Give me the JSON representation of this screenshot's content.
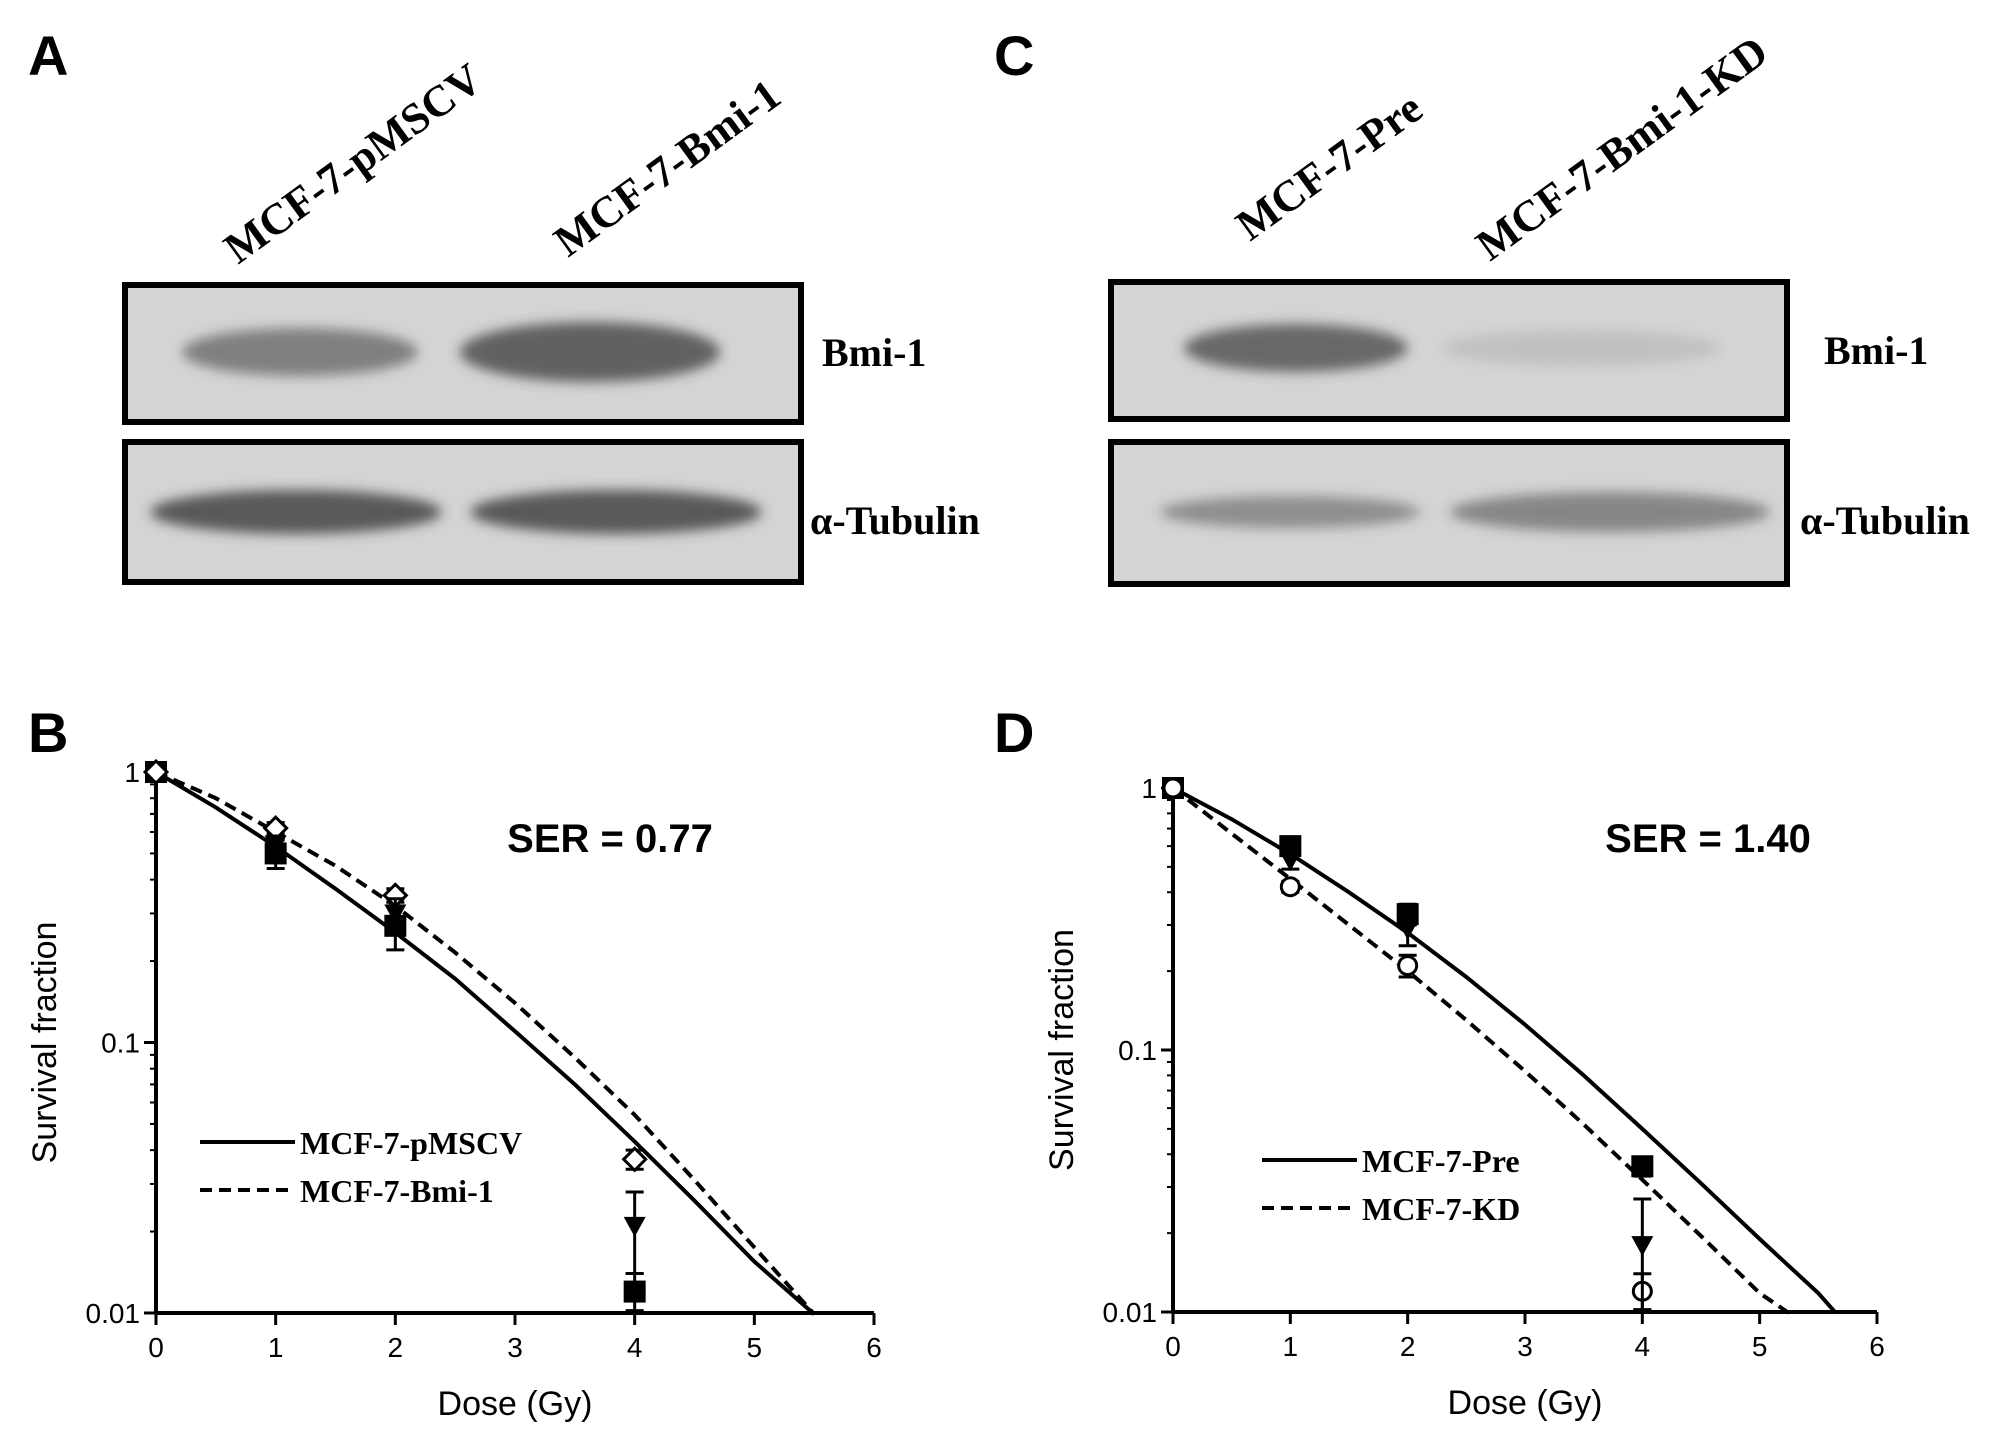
{
  "blots": [
    {
      "panel": "A",
      "lanes": [
        "MCF-7-pMSCV",
        "MCF-7-Bmi-1"
      ],
      "bands": [
        {
          "label": "Bmi-1",
          "intensity": [
            0.55,
            0.75
          ]
        },
        {
          "label": "α-Tubulin",
          "intensity": [
            0.8,
            0.8
          ]
        }
      ]
    },
    {
      "panel": "C",
      "lanes": [
        "MCF-7-Pre",
        "MCF-7-Bmi-1-KD"
      ],
      "bands": [
        {
          "label": "Bmi-1",
          "intensity": [
            0.7,
            0.12
          ]
        },
        {
          "label": "α-Tubulin",
          "intensity": [
            0.45,
            0.5
          ]
        }
      ]
    }
  ],
  "colors": {
    "blot_background": "#d4d4d4",
    "band": "#3a3a3a",
    "line": "#000000"
  },
  "chart_data": [
    {
      "panel": "B",
      "type": "line",
      "annotation": "SER = 0.77",
      "xlabel": "Dose (Gy)",
      "ylabel": "Survival fraction",
      "xlim": [
        0,
        6
      ],
      "ylim": [
        0.01,
        1
      ],
      "yscale": "log",
      "xticks": [
        "0",
        "1",
        "2",
        "3",
        "4",
        "5",
        "6"
      ],
      "yticks": [
        "1",
        "0.1",
        "0.01"
      ],
      "legend_position": "lower-left",
      "series": [
        {
          "name": "MCF-7-pMSCV",
          "style": "solid",
          "marker": "filled-square",
          "points": [
            [
              0,
              1.0
            ],
            [
              1,
              0.5
            ],
            [
              2,
              0.27
            ],
            [
              4,
              0.012
            ]
          ],
          "errors": [
            0,
            0.06,
            0.05,
            0.002
          ],
          "fit": [
            [
              0,
              1.0
            ],
            [
              0.5,
              0.74
            ],
            [
              1,
              0.53
            ],
            [
              1.5,
              0.37
            ],
            [
              2,
              0.255
            ],
            [
              2.5,
              0.172
            ],
            [
              3,
              0.11
            ],
            [
              3.5,
              0.07
            ],
            [
              4,
              0.043
            ],
            [
              4.5,
              0.026
            ],
            [
              5,
              0.0155
            ],
            [
              5.5,
              0.0099
            ]
          ]
        },
        {
          "name": "MCF-7-Bmi-1",
          "style": "dashed",
          "marker": "open-diamond",
          "points": [
            [
              0,
              1.0
            ],
            [
              1,
              0.62
            ],
            [
              2,
              0.35
            ],
            [
              4,
              0.037
            ]
          ],
          "errors": [
            0,
            0.03,
            0.02,
            0.003
          ],
          "fit": [
            [
              0,
              1.0
            ],
            [
              0.5,
              0.8
            ],
            [
              1,
              0.6
            ],
            [
              1.5,
              0.45
            ],
            [
              2,
              0.32
            ],
            [
              2.5,
              0.215
            ],
            [
              3,
              0.14
            ],
            [
              3.5,
              0.088
            ],
            [
              4,
              0.054
            ],
            [
              4.5,
              0.031
            ],
            [
              5,
              0.0175
            ],
            [
              5.5,
              0.0099
            ]
          ]
        },
        {
          "name": "",
          "style": "none",
          "marker": "filled-triangle",
          "points": [
            [
              1,
              0.54
            ],
            [
              2,
              0.3
            ],
            [
              4,
              0.021
            ]
          ],
          "errors": [
            0.04,
            0.04,
            0.007
          ]
        }
      ]
    },
    {
      "panel": "D",
      "type": "line",
      "annotation": "SER = 1.40",
      "xlabel": "Dose (Gy)",
      "ylabel": "Survival fraction",
      "xlim": [
        0,
        6
      ],
      "ylim": [
        0.01,
        1
      ],
      "yscale": "log",
      "xticks": [
        "0",
        "1",
        "2",
        "3",
        "4",
        "5",
        "6"
      ],
      "yticks": [
        "1",
        "0.1",
        "0.01"
      ],
      "legend_position": "lower-left",
      "series": [
        {
          "name": "MCF-7-Pre",
          "style": "solid",
          "marker": "filled-square",
          "points": [
            [
              0,
              1.0
            ],
            [
              1,
              0.6
            ],
            [
              2,
              0.33
            ],
            [
              4,
              0.036
            ]
          ],
          "errors": [
            0,
            0.04,
            0.03,
            0.003
          ],
          "fit": [
            [
              0,
              1.0
            ],
            [
              0.5,
              0.76
            ],
            [
              1,
              0.56
            ],
            [
              1.5,
              0.4
            ],
            [
              2,
              0.28
            ],
            [
              2.5,
              0.19
            ],
            [
              3,
              0.125
            ],
            [
              3.5,
              0.08
            ],
            [
              4,
              0.05
            ],
            [
              4.5,
              0.031
            ],
            [
              5,
              0.019
            ],
            [
              5.5,
              0.0118
            ],
            [
              5.65,
              0.0099
            ]
          ]
        },
        {
          "name": "MCF-7-KD",
          "style": "dashed",
          "marker": "open-circle",
          "points": [
            [
              0,
              1.0
            ],
            [
              1,
              0.42
            ],
            [
              2,
              0.21
            ],
            [
              4,
              0.012
            ]
          ],
          "errors": [
            0,
            0.02,
            0.02,
            0.002
          ],
          "fit": [
            [
              0,
              1.0
            ],
            [
              0.5,
              0.67
            ],
            [
              1,
              0.45
            ],
            [
              1.5,
              0.3
            ],
            [
              2,
              0.2
            ],
            [
              2.5,
              0.13
            ],
            [
              3,
              0.083
            ],
            [
              3.5,
              0.052
            ],
            [
              4,
              0.032
            ],
            [
              4.5,
              0.0195
            ],
            [
              5,
              0.0118
            ],
            [
              5.25,
              0.0099
            ]
          ]
        },
        {
          "name": "",
          "style": "none",
          "marker": "filled-triangle",
          "points": [
            [
              1,
              0.53
            ],
            [
              2,
              0.29
            ],
            [
              4,
              0.018
            ]
          ],
          "errors": [
            0.04,
            0.04,
            0.009
          ]
        }
      ]
    }
  ]
}
